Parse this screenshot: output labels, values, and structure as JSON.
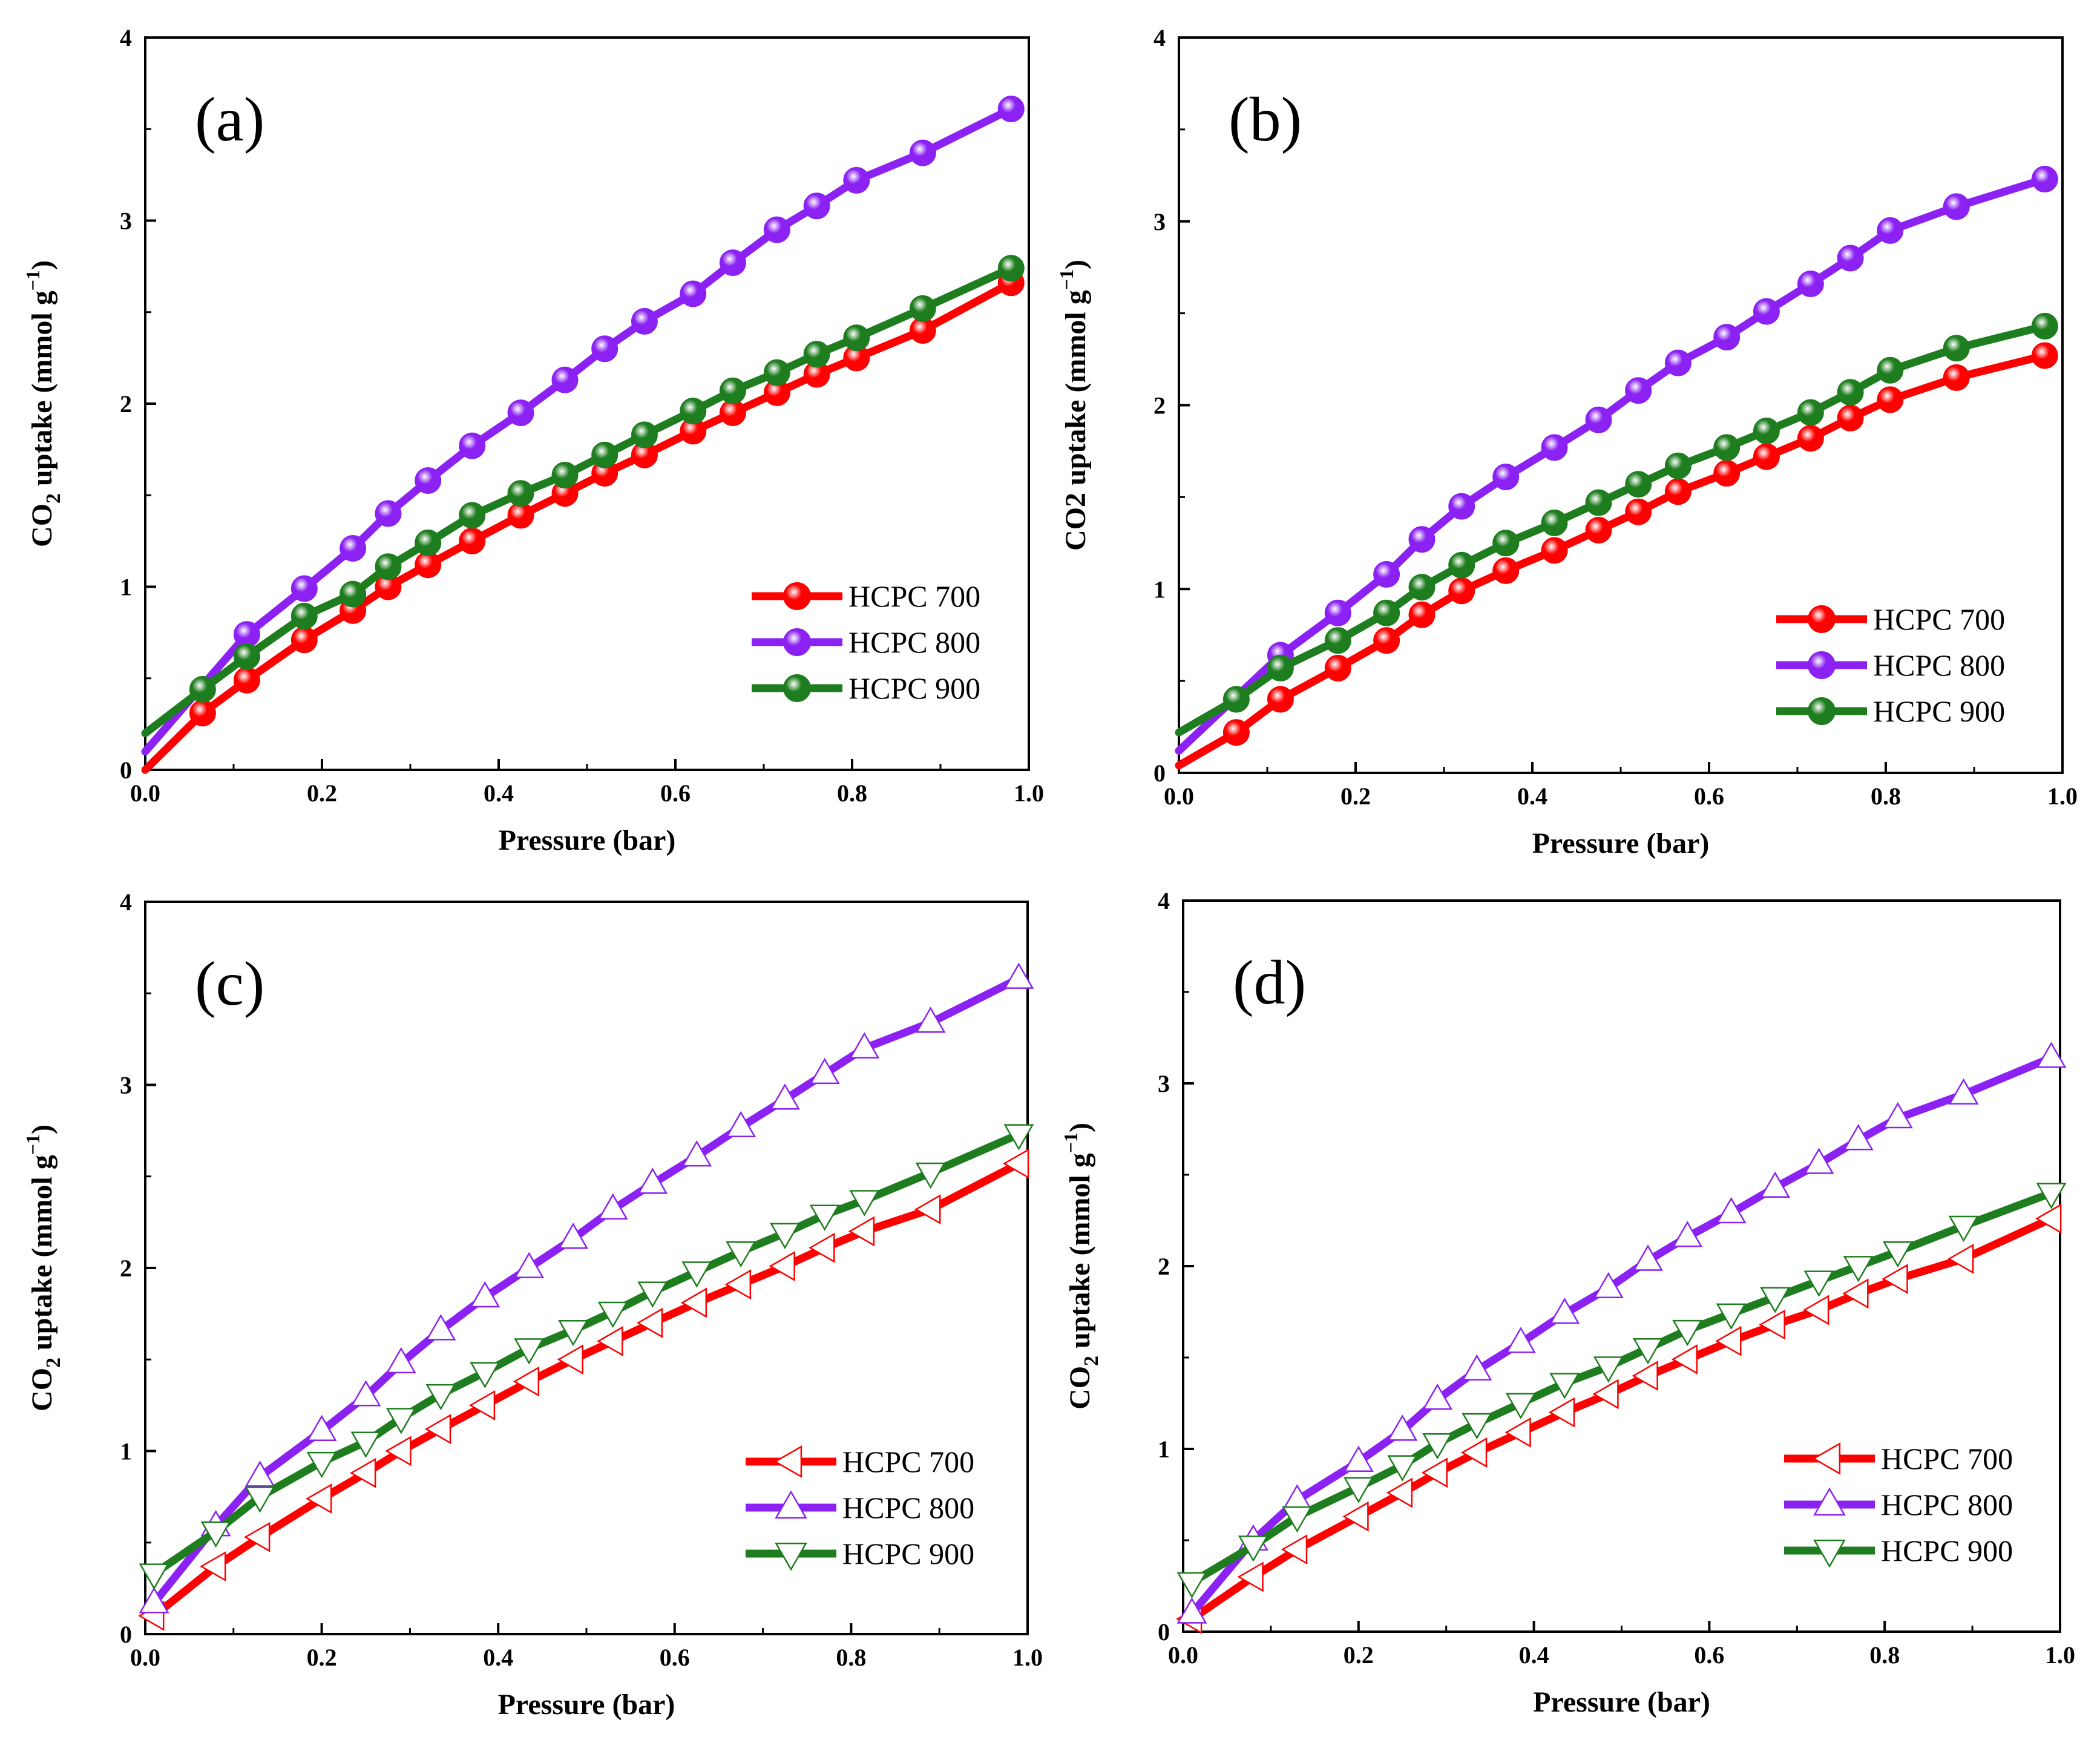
{
  "chart_data": [
    {
      "type": "line",
      "panel_label": "(a)",
      "marker": "sphere",
      "xlabel": "Pressure (bar)",
      "ylabel": {
        "pre": "CO",
        "sub": "2",
        "post": " uptake (mmol g",
        "sup": "−1",
        "end": ")"
      },
      "xlim": [
        0,
        1.0
      ],
      "ylim": [
        0,
        4
      ],
      "xticks": [
        "0.0",
        "0.2",
        "0.4",
        "0.6",
        "0.8",
        "1.0"
      ],
      "yticks": [
        "0",
        "1",
        "2",
        "3",
        "4"
      ],
      "legend_position": "lower-right",
      "series": [
        {
          "name": "HCPC 700",
          "color": "#ff0000",
          "x": [
            0.0,
            0.065,
            0.115,
            0.18,
            0.235,
            0.275,
            0.32,
            0.37,
            0.425,
            0.475,
            0.52,
            0.565,
            0.62,
            0.665,
            0.715,
            0.76,
            0.805,
            0.88,
            0.98
          ],
          "y": [
            0.0,
            0.31,
            0.49,
            0.71,
            0.87,
            1.0,
            1.12,
            1.25,
            1.39,
            1.51,
            1.62,
            1.72,
            1.85,
            1.95,
            2.06,
            2.16,
            2.25,
            2.4,
            2.66
          ]
        },
        {
          "name": "HCPC 800",
          "color": "#8b21f2",
          "x": [
            0.0,
            0.115,
            0.18,
            0.235,
            0.275,
            0.32,
            0.37,
            0.425,
            0.475,
            0.52,
            0.565,
            0.62,
            0.665,
            0.715,
            0.76,
            0.805,
            0.88,
            0.98
          ],
          "y": [
            0.1,
            0.74,
            0.99,
            1.21,
            1.4,
            1.58,
            1.77,
            1.95,
            2.13,
            2.3,
            2.45,
            2.6,
            2.77,
            2.95,
            3.08,
            3.22,
            3.37,
            3.61
          ]
        },
        {
          "name": "HCPC 900",
          "color": "#1e7d1e",
          "x": [
            0.0,
            0.065,
            0.115,
            0.18,
            0.235,
            0.275,
            0.32,
            0.37,
            0.425,
            0.475,
            0.52,
            0.565,
            0.62,
            0.665,
            0.715,
            0.76,
            0.805,
            0.88,
            0.98
          ],
          "y": [
            0.2,
            0.44,
            0.62,
            0.84,
            0.96,
            1.11,
            1.24,
            1.39,
            1.51,
            1.61,
            1.72,
            1.83,
            1.96,
            2.07,
            2.17,
            2.27,
            2.36,
            2.52,
            2.74
          ]
        }
      ]
    },
    {
      "type": "line",
      "panel_label": "(b)",
      "marker": "sphere",
      "xlabel": "Pressure (bar)",
      "ylabel": {
        "pre": "CO2 uptake (mmol g",
        "sub": "",
        "post": "",
        "sup": "−1",
        "end": ")"
      },
      "xlim": [
        0,
        1.0
      ],
      "ylim": [
        0,
        4
      ],
      "xticks": [
        "0.0",
        "0.2",
        "0.4",
        "0.6",
        "0.8",
        "1.0"
      ],
      "yticks": [
        "0",
        "1",
        "2",
        "3",
        "4"
      ],
      "legend_position": "lower-right",
      "series": [
        {
          "name": "HCPC 700",
          "color": "#ff0000",
          "x": [
            0.0,
            0.065,
            0.115,
            0.18,
            0.235,
            0.275,
            0.32,
            0.37,
            0.425,
            0.475,
            0.52,
            0.565,
            0.62,
            0.665,
            0.715,
            0.76,
            0.805,
            0.88,
            0.98
          ],
          "y": [
            0.04,
            0.22,
            0.4,
            0.57,
            0.72,
            0.86,
            0.99,
            1.1,
            1.21,
            1.32,
            1.42,
            1.53,
            1.63,
            1.72,
            1.82,
            1.93,
            2.03,
            2.15,
            2.27
          ]
        },
        {
          "name": "HCPC 800",
          "color": "#8b21f2",
          "x": [
            0.0,
            0.115,
            0.18,
            0.235,
            0.275,
            0.32,
            0.37,
            0.425,
            0.475,
            0.52,
            0.565,
            0.62,
            0.665,
            0.715,
            0.76,
            0.805,
            0.88,
            0.98
          ],
          "y": [
            0.12,
            0.64,
            0.87,
            1.08,
            1.27,
            1.45,
            1.61,
            1.77,
            1.92,
            2.08,
            2.23,
            2.37,
            2.51,
            2.66,
            2.8,
            2.95,
            3.08,
            3.23
          ]
        },
        {
          "name": "HCPC 900",
          "color": "#1e7d1e",
          "x": [
            0.0,
            0.065,
            0.115,
            0.18,
            0.235,
            0.275,
            0.32,
            0.37,
            0.425,
            0.475,
            0.52,
            0.565,
            0.62,
            0.665,
            0.715,
            0.76,
            0.805,
            0.88,
            0.98
          ],
          "y": [
            0.22,
            0.4,
            0.57,
            0.72,
            0.87,
            1.01,
            1.13,
            1.25,
            1.36,
            1.47,
            1.57,
            1.67,
            1.77,
            1.86,
            1.96,
            2.07,
            2.19,
            2.31,
            2.43
          ]
        }
      ]
    },
    {
      "type": "line",
      "panel_label": "(c)",
      "marker": "triangle",
      "xlabel": "Pressure (bar)",
      "ylabel": {
        "pre": "CO",
        "sub": "2",
        "post": " uptake (mmol g",
        "sup": "−1",
        "end": ")"
      },
      "xlim": [
        0,
        1.0
      ],
      "ylim": [
        0,
        4
      ],
      "xticks": [
        "0.0",
        "0.2",
        "0.4",
        "0.6",
        "0.8",
        "1.0"
      ],
      "yticks": [
        "0",
        "1",
        "2",
        "3",
        "4"
      ],
      "legend_position": "lower-right",
      "series": [
        {
          "name": "HCPC 700",
          "color": "#ff0000",
          "triangle": "left",
          "x": [
            0.01,
            0.08,
            0.13,
            0.2,
            0.25,
            0.29,
            0.335,
            0.385,
            0.435,
            0.485,
            0.53,
            0.575,
            0.625,
            0.675,
            0.725,
            0.77,
            0.815,
            0.89,
            0.99
          ],
          "y": [
            0.1,
            0.37,
            0.53,
            0.74,
            0.88,
            1.0,
            1.12,
            1.25,
            1.38,
            1.5,
            1.6,
            1.7,
            1.81,
            1.91,
            2.01,
            2.11,
            2.2,
            2.32,
            2.57
          ]
        },
        {
          "name": "HCPC 800",
          "color": "#8b21f2",
          "triangle": "up",
          "x": [
            0.01,
            0.08,
            0.13,
            0.2,
            0.25,
            0.29,
            0.335,
            0.385,
            0.435,
            0.485,
            0.53,
            0.575,
            0.625,
            0.675,
            0.725,
            0.77,
            0.815,
            0.89,
            0.99
          ],
          "y": [
            0.17,
            0.59,
            0.86,
            1.11,
            1.3,
            1.48,
            1.66,
            1.84,
            2.0,
            2.16,
            2.32,
            2.46,
            2.61,
            2.77,
            2.92,
            3.06,
            3.2,
            3.34,
            3.58
          ]
        },
        {
          "name": "HCPC 900",
          "color": "#1e7d1e",
          "triangle": "down",
          "x": [
            0.01,
            0.08,
            0.13,
            0.2,
            0.25,
            0.29,
            0.335,
            0.385,
            0.435,
            0.485,
            0.53,
            0.575,
            0.625,
            0.675,
            0.725,
            0.77,
            0.815,
            0.89,
            0.99
          ],
          "y": [
            0.33,
            0.56,
            0.75,
            0.94,
            1.05,
            1.18,
            1.31,
            1.43,
            1.56,
            1.66,
            1.76,
            1.87,
            1.98,
            2.09,
            2.19,
            2.29,
            2.37,
            2.52,
            2.73
          ]
        }
      ]
    },
    {
      "type": "line",
      "panel_label": "(d)",
      "marker": "triangle",
      "xlabel": "Pressure (bar)",
      "ylabel": {
        "pre": "CO",
        "sub": "2",
        "post": " uptake (mmol g",
        "sup": "−1",
        "end": ")"
      },
      "xlim": [
        0,
        1.0
      ],
      "ylim": [
        0,
        4
      ],
      "xticks": [
        "0.0",
        "0.2",
        "0.4",
        "0.6",
        "0.8",
        "1.0"
      ],
      "yticks": [
        "0",
        "1",
        "2",
        "3",
        "4"
      ],
      "legend_position": "lower-right",
      "series": [
        {
          "name": "HCPC 700",
          "color": "#ff0000",
          "triangle": "left",
          "x": [
            0.01,
            0.08,
            0.13,
            0.2,
            0.25,
            0.29,
            0.335,
            0.385,
            0.435,
            0.485,
            0.53,
            0.575,
            0.625,
            0.675,
            0.725,
            0.77,
            0.815,
            0.89,
            0.99
          ],
          "y": [
            0.07,
            0.3,
            0.45,
            0.63,
            0.76,
            0.87,
            0.98,
            1.09,
            1.2,
            1.3,
            1.4,
            1.49,
            1.59,
            1.68,
            1.76,
            1.85,
            1.93,
            2.04,
            2.26
          ]
        },
        {
          "name": "HCPC 800",
          "color": "#8b21f2",
          "triangle": "up",
          "x": [
            0.01,
            0.08,
            0.13,
            0.2,
            0.25,
            0.29,
            0.335,
            0.385,
            0.435,
            0.485,
            0.53,
            0.575,
            0.625,
            0.675,
            0.725,
            0.77,
            0.815,
            0.89,
            0.99
          ],
          "y": [
            0.1,
            0.5,
            0.72,
            0.93,
            1.1,
            1.27,
            1.43,
            1.58,
            1.74,
            1.88,
            2.03,
            2.16,
            2.29,
            2.43,
            2.56,
            2.69,
            2.81,
            2.94,
            3.14
          ]
        },
        {
          "name": "HCPC 900",
          "color": "#1e7d1e",
          "triangle": "down",
          "x": [
            0.01,
            0.08,
            0.13,
            0.2,
            0.25,
            0.29,
            0.335,
            0.385,
            0.435,
            0.485,
            0.53,
            0.575,
            0.625,
            0.675,
            0.725,
            0.77,
            0.815,
            0.89,
            0.99
          ],
          "y": [
            0.27,
            0.47,
            0.63,
            0.79,
            0.91,
            1.03,
            1.14,
            1.25,
            1.36,
            1.45,
            1.55,
            1.65,
            1.74,
            1.83,
            1.92,
            2.0,
            2.08,
            2.22,
            2.4
          ]
        }
      ]
    }
  ]
}
